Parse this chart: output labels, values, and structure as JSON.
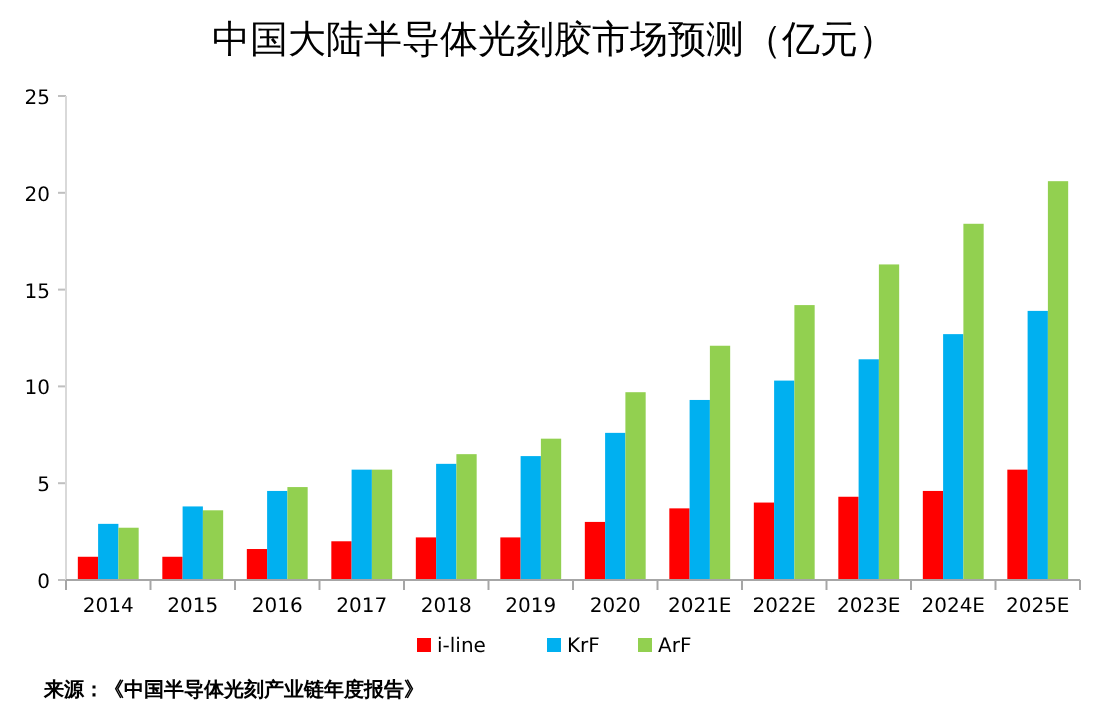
{
  "chart_data": {
    "type": "bar",
    "title": "中国大陆半导体光刻胶市场预测（亿元）",
    "categories": [
      "2014",
      "2015",
      "2016",
      "2017",
      "2018",
      "2019",
      "2020",
      "2021E",
      "2022E",
      "2023E",
      "2024E",
      "2025E"
    ],
    "series": [
      {
        "name": "i-line",
        "color": "#ff0000",
        "values": [
          1.2,
          1.2,
          1.6,
          2.0,
          2.2,
          2.2,
          3.0,
          3.7,
          4.0,
          4.3,
          4.6,
          5.7
        ]
      },
      {
        "name": "KrF",
        "color": "#00b0f0",
        "values": [
          2.9,
          3.8,
          4.6,
          5.7,
          6.0,
          6.4,
          7.6,
          9.3,
          10.3,
          11.4,
          12.7,
          13.9
        ]
      },
      {
        "name": "ArF",
        "color": "#92d050",
        "values": [
          2.7,
          3.6,
          4.8,
          5.7,
          6.5,
          7.3,
          9.7,
          12.1,
          14.2,
          16.3,
          18.4,
          20.6
        ]
      }
    ],
    "ylim": [
      0,
      25
    ],
    "yticks": [
      0,
      5,
      10,
      15,
      20,
      25
    ],
    "grid": false,
    "legend": "bottom",
    "annotations": [
      "来源：《中国半导体光刻产业链年度报告》"
    ]
  }
}
